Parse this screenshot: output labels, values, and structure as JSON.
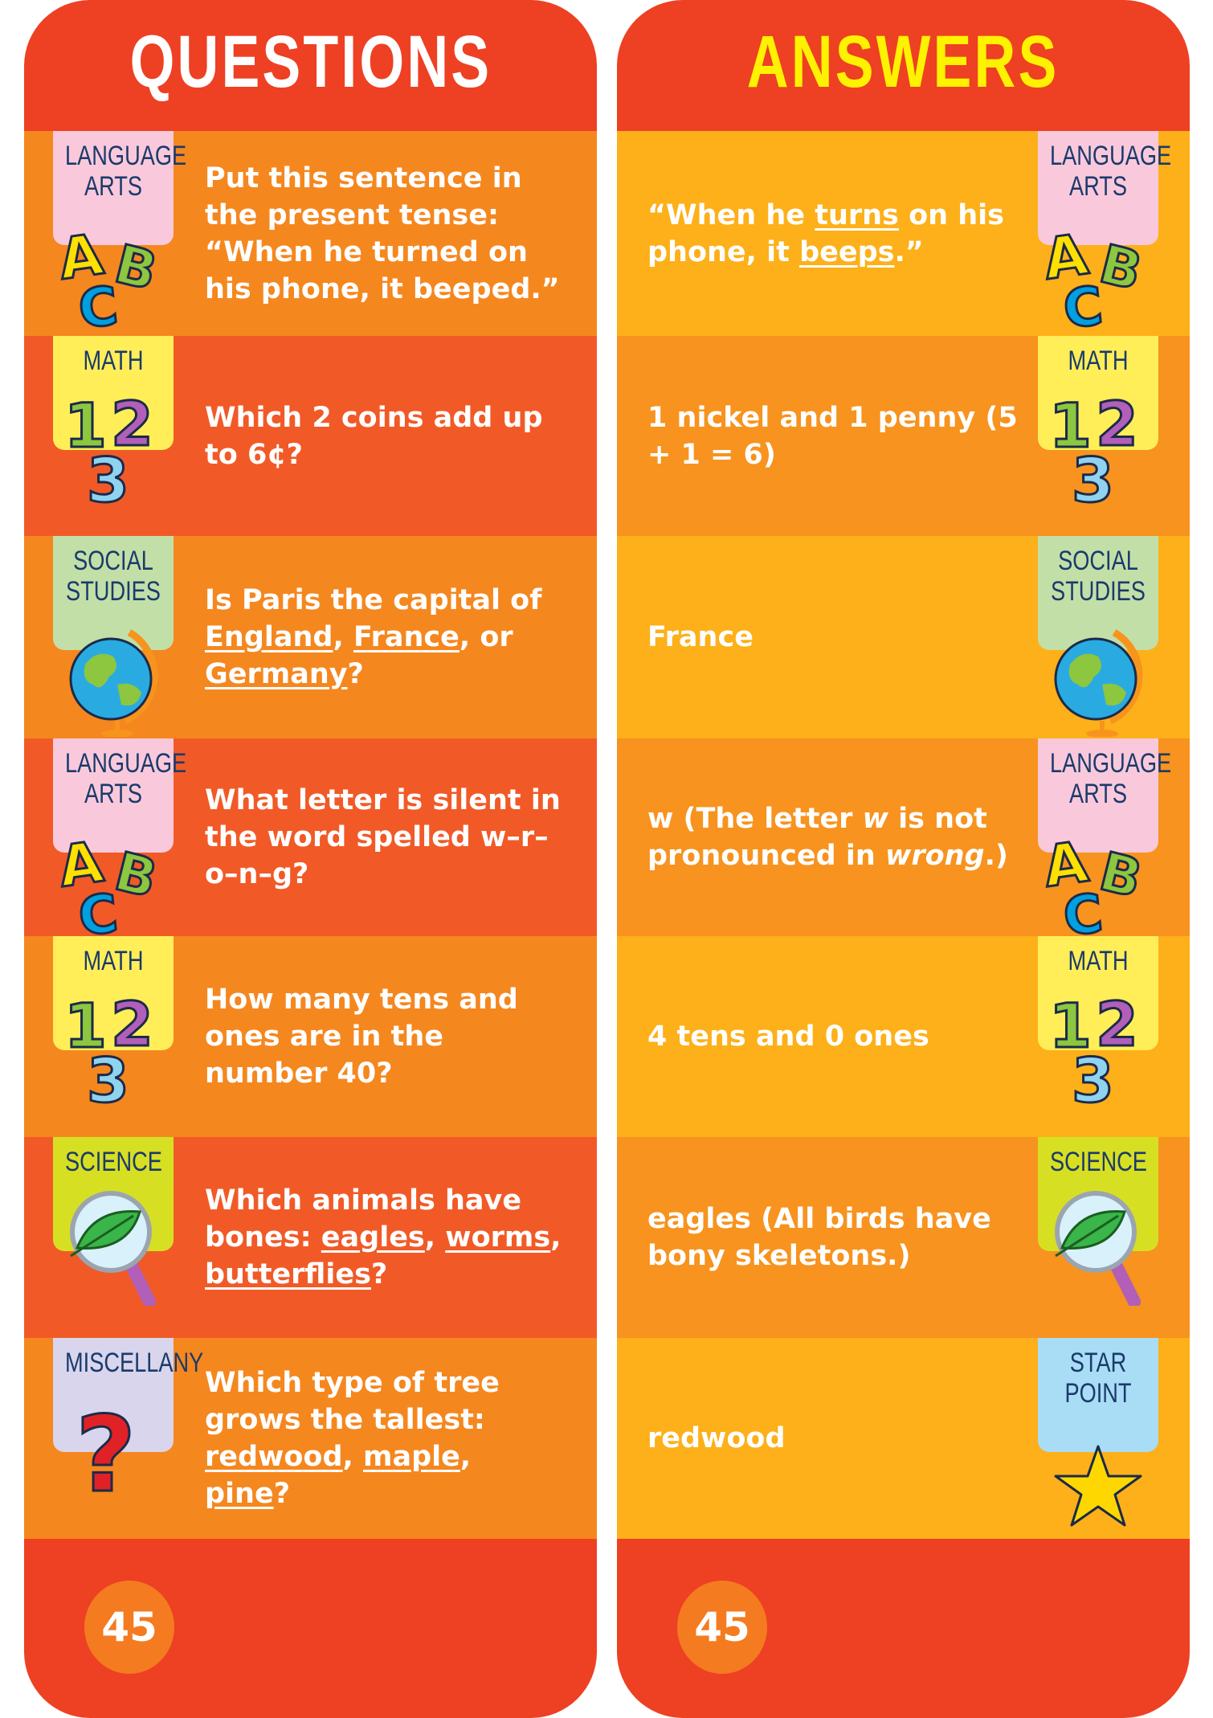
{
  "questions_title": "QUESTIONS",
  "answers_title": "ANSWERS",
  "page_number": "45",
  "colors": {
    "header": "#EE4023",
    "question_rows": [
      "#F5871F",
      "#F15A27"
    ],
    "answer_rows": [
      "#FDB019",
      "#F7931E"
    ],
    "answers_title": "#FFF200",
    "category_text": "#1B3A6B"
  },
  "rows": [
    {
      "q_category": {
        "lines": [
          "LANGUAGE",
          "ARTS"
        ],
        "icon": "abc-letters-icon",
        "color": "#F9C9DB"
      },
      "question": [
        {
          "t": "Put this sentence in the present tense: “When he turned on his phone, it beeped.”"
        }
      ],
      "a_category": {
        "lines": [
          "LANGUAGE",
          "ARTS"
        ],
        "icon": "abc-letters-icon",
        "color": "#F9C9DB"
      },
      "answer": [
        {
          "t": "“When he "
        },
        {
          "t": "turns",
          "u": true
        },
        {
          "t": " on his phone, it "
        },
        {
          "t": "beeps",
          "u": true
        },
        {
          "t": ".”"
        }
      ]
    },
    {
      "q_category": {
        "lines": [
          "MATH"
        ],
        "icon": "123-numbers-icon",
        "color": "#FFEE58"
      },
      "question": [
        {
          "t": "Which 2 coins add up to 6¢?"
        }
      ],
      "a_category": {
        "lines": [
          "MATH"
        ],
        "icon": "123-numbers-icon",
        "color": "#FFEE58"
      },
      "answer": [
        {
          "t": "1 nickel and 1 penny (5 + 1 = 6)"
        }
      ]
    },
    {
      "q_category": {
        "lines": [
          "SOCIAL",
          "STUDIES"
        ],
        "icon": "globe-icon",
        "color": "#C2DFA8"
      },
      "question": [
        {
          "t": "Is Paris the capital of "
        },
        {
          "t": "England",
          "u": true
        },
        {
          "t": ", "
        },
        {
          "t": "France",
          "u": true
        },
        {
          "t": ", or "
        },
        {
          "t": "Germany",
          "u": true
        },
        {
          "t": "?"
        }
      ],
      "a_category": {
        "lines": [
          "SOCIAL",
          "STUDIES"
        ],
        "icon": "globe-icon",
        "color": "#C2DFA8"
      },
      "answer": [
        {
          "t": "France"
        }
      ]
    },
    {
      "q_category": {
        "lines": [
          "LANGUAGE",
          "ARTS"
        ],
        "icon": "abc-letters-icon",
        "color": "#F9C9DB"
      },
      "question": [
        {
          "t": "What letter is silent in the word spelled w–r–o–n–g?"
        }
      ],
      "a_category": {
        "lines": [
          "LANGUAGE",
          "ARTS"
        ],
        "icon": "abc-letters-icon",
        "color": "#F9C9DB"
      },
      "answer": [
        {
          "t": "w (The letter "
        },
        {
          "t": "w",
          "i": true
        },
        {
          "t": " is not pronounced in "
        },
        {
          "t": "wrong",
          "i": true
        },
        {
          "t": ".)"
        }
      ]
    },
    {
      "q_category": {
        "lines": [
          "MATH"
        ],
        "icon": "123-numbers-icon",
        "color": "#FFEE58"
      },
      "question": [
        {
          "t": "How many tens and ones are in the number 40?"
        }
      ],
      "a_category": {
        "lines": [
          "MATH"
        ],
        "icon": "123-numbers-icon",
        "color": "#FFEE58"
      },
      "answer": [
        {
          "t": "4 tens and 0 ones"
        }
      ]
    },
    {
      "q_category": {
        "lines": [
          "SCIENCE"
        ],
        "icon": "magnifier-leaf-icon",
        "color": "#D7DF23"
      },
      "question": [
        {
          "t": "Which animals have bones: "
        },
        {
          "t": "eagles",
          "u": true
        },
        {
          "t": ", "
        },
        {
          "t": "worms",
          "u": true
        },
        {
          "t": ", "
        },
        {
          "t": "butterflies",
          "u": true
        },
        {
          "t": "?"
        }
      ],
      "a_category": {
        "lines": [
          "SCIENCE"
        ],
        "icon": "magnifier-leaf-icon",
        "color": "#D7DF23"
      },
      "answer": [
        {
          "t": "eagles (All birds have bony skeletons.)"
        }
      ]
    },
    {
      "q_category": {
        "lines": [
          "MISCELLANY"
        ],
        "icon": "question-mark-icon",
        "color": "#D8D5EC"
      },
      "question": [
        {
          "t": "Which type of tree grows the tallest: "
        },
        {
          "t": "redwood",
          "u": true
        },
        {
          "t": ", "
        },
        {
          "t": "maple",
          "u": true
        },
        {
          "t": ", "
        },
        {
          "t": "pine",
          "u": true
        },
        {
          "t": "?"
        }
      ],
      "a_category": {
        "lines": [
          "STAR",
          "POINT"
        ],
        "icon": "star-icon",
        "color": "#A9DCF5"
      },
      "answer": [
        {
          "t": "redwood"
        }
      ]
    }
  ]
}
